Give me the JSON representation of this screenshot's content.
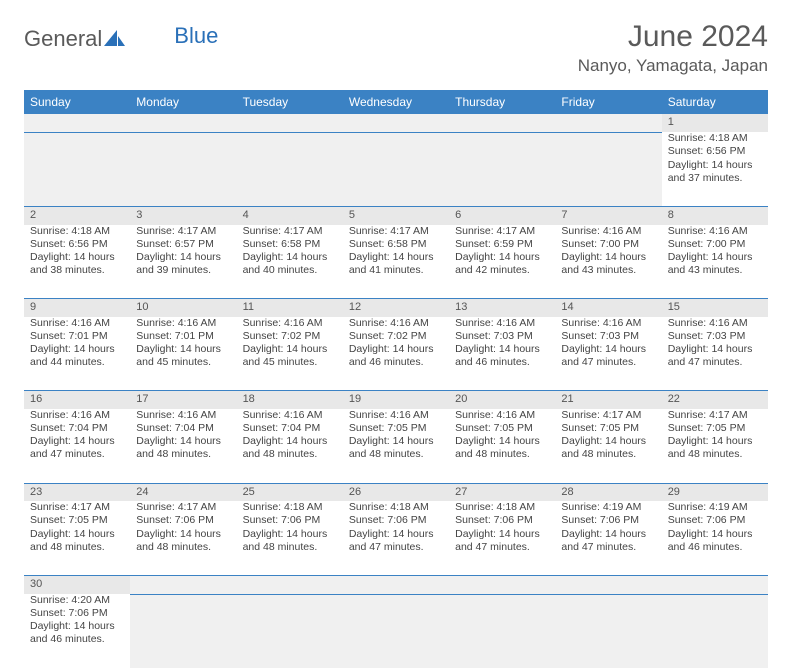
{
  "logo": {
    "part1": "General",
    "part2": "Blue"
  },
  "title": "June 2024",
  "location": "Nanyo, Yamagata, Japan",
  "colors": {
    "header_bg": "#3b82c4",
    "header_text": "#ffffff",
    "daynum_bg": "#e8e8e8",
    "empty_bg": "#f0f0f0",
    "border": "#3b82c4",
    "body_text": "#444444",
    "title_text": "#5a5a5a",
    "logo_gray": "#5a5a5a",
    "logo_blue": "#2a70b8"
  },
  "weekdays": [
    "Sunday",
    "Monday",
    "Tuesday",
    "Wednesday",
    "Thursday",
    "Friday",
    "Saturday"
  ],
  "layout": {
    "columns": 7,
    "first_weekday_index": 6,
    "days_in_month": 30
  },
  "days": {
    "1": {
      "sunrise": "4:18 AM",
      "sunset": "6:56 PM",
      "dl_h": 14,
      "dl_m": 37
    },
    "2": {
      "sunrise": "4:18 AM",
      "sunset": "6:56 PM",
      "dl_h": 14,
      "dl_m": 38
    },
    "3": {
      "sunrise": "4:17 AM",
      "sunset": "6:57 PM",
      "dl_h": 14,
      "dl_m": 39
    },
    "4": {
      "sunrise": "4:17 AM",
      "sunset": "6:58 PM",
      "dl_h": 14,
      "dl_m": 40
    },
    "5": {
      "sunrise": "4:17 AM",
      "sunset": "6:58 PM",
      "dl_h": 14,
      "dl_m": 41
    },
    "6": {
      "sunrise": "4:17 AM",
      "sunset": "6:59 PM",
      "dl_h": 14,
      "dl_m": 42
    },
    "7": {
      "sunrise": "4:16 AM",
      "sunset": "7:00 PM",
      "dl_h": 14,
      "dl_m": 43
    },
    "8": {
      "sunrise": "4:16 AM",
      "sunset": "7:00 PM",
      "dl_h": 14,
      "dl_m": 43
    },
    "9": {
      "sunrise": "4:16 AM",
      "sunset": "7:01 PM",
      "dl_h": 14,
      "dl_m": 44
    },
    "10": {
      "sunrise": "4:16 AM",
      "sunset": "7:01 PM",
      "dl_h": 14,
      "dl_m": 45
    },
    "11": {
      "sunrise": "4:16 AM",
      "sunset": "7:02 PM",
      "dl_h": 14,
      "dl_m": 45
    },
    "12": {
      "sunrise": "4:16 AM",
      "sunset": "7:02 PM",
      "dl_h": 14,
      "dl_m": 46
    },
    "13": {
      "sunrise": "4:16 AM",
      "sunset": "7:03 PM",
      "dl_h": 14,
      "dl_m": 46
    },
    "14": {
      "sunrise": "4:16 AM",
      "sunset": "7:03 PM",
      "dl_h": 14,
      "dl_m": 47
    },
    "15": {
      "sunrise": "4:16 AM",
      "sunset": "7:03 PM",
      "dl_h": 14,
      "dl_m": 47
    },
    "16": {
      "sunrise": "4:16 AM",
      "sunset": "7:04 PM",
      "dl_h": 14,
      "dl_m": 47
    },
    "17": {
      "sunrise": "4:16 AM",
      "sunset": "7:04 PM",
      "dl_h": 14,
      "dl_m": 48
    },
    "18": {
      "sunrise": "4:16 AM",
      "sunset": "7:04 PM",
      "dl_h": 14,
      "dl_m": 48
    },
    "19": {
      "sunrise": "4:16 AM",
      "sunset": "7:05 PM",
      "dl_h": 14,
      "dl_m": 48
    },
    "20": {
      "sunrise": "4:16 AM",
      "sunset": "7:05 PM",
      "dl_h": 14,
      "dl_m": 48
    },
    "21": {
      "sunrise": "4:17 AM",
      "sunset": "7:05 PM",
      "dl_h": 14,
      "dl_m": 48
    },
    "22": {
      "sunrise": "4:17 AM",
      "sunset": "7:05 PM",
      "dl_h": 14,
      "dl_m": 48
    },
    "23": {
      "sunrise": "4:17 AM",
      "sunset": "7:05 PM",
      "dl_h": 14,
      "dl_m": 48
    },
    "24": {
      "sunrise": "4:17 AM",
      "sunset": "7:06 PM",
      "dl_h": 14,
      "dl_m": 48
    },
    "25": {
      "sunrise": "4:18 AM",
      "sunset": "7:06 PM",
      "dl_h": 14,
      "dl_m": 48
    },
    "26": {
      "sunrise": "4:18 AM",
      "sunset": "7:06 PM",
      "dl_h": 14,
      "dl_m": 47
    },
    "27": {
      "sunrise": "4:18 AM",
      "sunset": "7:06 PM",
      "dl_h": 14,
      "dl_m": 47
    },
    "28": {
      "sunrise": "4:19 AM",
      "sunset": "7:06 PM",
      "dl_h": 14,
      "dl_m": 47
    },
    "29": {
      "sunrise": "4:19 AM",
      "sunset": "7:06 PM",
      "dl_h": 14,
      "dl_m": 46
    },
    "30": {
      "sunrise": "4:20 AM",
      "sunset": "7:06 PM",
      "dl_h": 14,
      "dl_m": 46
    }
  },
  "labels": {
    "sunrise_prefix": "Sunrise: ",
    "sunset_prefix": "Sunset: ",
    "daylight_prefix": "Daylight: ",
    "hours_word": " hours",
    "and_word": "and ",
    "minutes_word": " minutes."
  }
}
